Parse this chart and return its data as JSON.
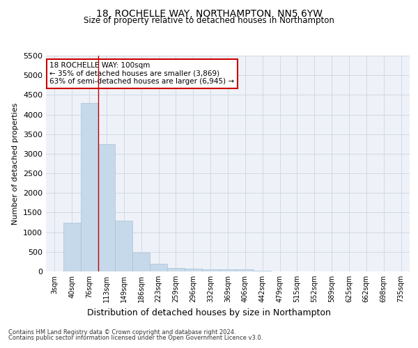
{
  "title1": "18, ROCHELLE WAY, NORTHAMPTON, NN5 6YW",
  "title2": "Size of property relative to detached houses in Northampton",
  "xlabel": "Distribution of detached houses by size in Northampton",
  "ylabel": "Number of detached properties",
  "categories": [
    "3sqm",
    "40sqm",
    "76sqm",
    "113sqm",
    "149sqm",
    "186sqm",
    "223sqm",
    "259sqm",
    "296sqm",
    "332sqm",
    "369sqm",
    "406sqm",
    "442sqm",
    "479sqm",
    "515sqm",
    "552sqm",
    "589sqm",
    "625sqm",
    "662sqm",
    "698sqm",
    "735sqm"
  ],
  "values": [
    0,
    1250,
    4300,
    3250,
    1300,
    475,
    200,
    90,
    70,
    60,
    55,
    50,
    10,
    5,
    3,
    2,
    1,
    1,
    0,
    0,
    0
  ],
  "bar_color": "#c6d9ea",
  "bar_edge_color": "#a8c0d8",
  "vline_x": 2.5,
  "vline_color": "#bb0000",
  "annotation_line1": "18 ROCHELLE WAY: 100sqm",
  "annotation_line2": "← 35% of detached houses are smaller (3,869)",
  "annotation_line3": "63% of semi-detached houses are larger (6,945) →",
  "ylim": [
    0,
    5500
  ],
  "yticks": [
    0,
    500,
    1000,
    1500,
    2000,
    2500,
    3000,
    3500,
    4000,
    4500,
    5000,
    5500
  ],
  "grid_color": "#ccd5e0",
  "footer1": "Contains HM Land Registry data © Crown copyright and database right 2024.",
  "footer2": "Contains public sector information licensed under the Open Government Licence v3.0.",
  "bg_color": "#eef2f8",
  "fig_width": 6.0,
  "fig_height": 5.0,
  "dpi": 100
}
